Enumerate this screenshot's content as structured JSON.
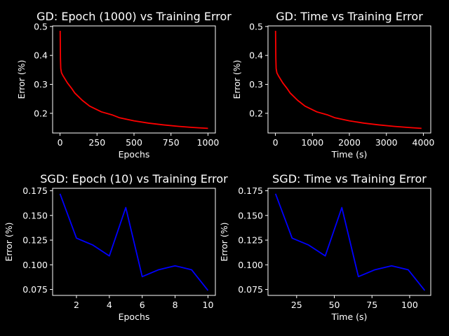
{
  "chart_data": [
    {
      "type": "line",
      "title": "GD: Epoch (1000) vs Training Error",
      "xlabel": "Epochs",
      "ylabel": "Error (%)",
      "xlim": [
        -50,
        1050
      ],
      "ylim": [
        0.132,
        0.502
      ],
      "xticks": [
        0,
        250,
        500,
        750,
        1000
      ],
      "xtick_labels": [
        "0",
        "250",
        "500",
        "750",
        "1000"
      ],
      "yticks": [
        0.2,
        0.3,
        0.4,
        0.5
      ],
      "ytick_labels": [
        "0.2",
        "0.3",
        "0.4",
        "0.5"
      ],
      "series": [
        {
          "color": "#ff0000",
          "x": [
            1,
            2,
            3,
            5,
            10,
            20,
            50,
            80,
            100,
            150,
            200,
            280,
            350,
            400,
            500,
            600,
            700,
            800,
            900,
            1000
          ],
          "y": [
            0.485,
            0.44,
            0.39,
            0.355,
            0.34,
            0.33,
            0.305,
            0.285,
            0.27,
            0.245,
            0.225,
            0.205,
            0.195,
            0.185,
            0.174,
            0.166,
            0.16,
            0.155,
            0.151,
            0.148
          ]
        }
      ]
    },
    {
      "type": "line",
      "title": "GD: Time vs Training Error",
      "xlabel": "Time (s)",
      "ylabel": "Error (%)",
      "xlim": [
        -200,
        4200
      ],
      "ylim": [
        0.132,
        0.502
      ],
      "xticks": [
        0,
        1000,
        2000,
        3000,
        4000
      ],
      "xtick_labels": [
        "0",
        "1000",
        "2000",
        "3000",
        "4000"
      ],
      "yticks": [
        0.2,
        0.3,
        0.4,
        0.5
      ],
      "ytick_labels": [
        "0.2",
        "0.3",
        "0.4",
        "0.5"
      ],
      "series": [
        {
          "color": "#ff0000",
          "x": [
            4,
            8,
            12,
            20,
            40,
            80,
            200,
            320,
            400,
            600,
            800,
            1120,
            1400,
            1600,
            2000,
            2400,
            2800,
            3200,
            3600,
            3950
          ],
          "y": [
            0.485,
            0.44,
            0.39,
            0.355,
            0.34,
            0.33,
            0.305,
            0.285,
            0.27,
            0.245,
            0.225,
            0.205,
            0.195,
            0.185,
            0.174,
            0.166,
            0.16,
            0.155,
            0.151,
            0.148
          ]
        }
      ]
    },
    {
      "type": "line",
      "title": "SGD: Epoch (10) vs Training Error",
      "xlabel": "Epochs",
      "ylabel": "Error (%)",
      "xlim": [
        0.55,
        10.45
      ],
      "ylim": [
        0.069,
        0.1775
      ],
      "xticks": [
        2,
        4,
        6,
        8,
        10
      ],
      "xtick_labels": [
        "2",
        "4",
        "6",
        "8",
        "10"
      ],
      "yticks": [
        0.075,
        0.1,
        0.125,
        0.15,
        0.175
      ],
      "ytick_labels": [
        "0.075",
        "0.100",
        "0.125",
        "0.150",
        "0.175"
      ],
      "series": [
        {
          "color": "#0000ff",
          "x": [
            1,
            2,
            3,
            4,
            5,
            6,
            7,
            8,
            9,
            10
          ],
          "y": [
            0.172,
            0.127,
            0.12,
            0.109,
            0.158,
            0.088,
            0.095,
            0.099,
            0.095,
            0.074
          ]
        }
      ]
    },
    {
      "type": "line",
      "title": "SGD: Time vs Training Error",
      "xlabel": "Time (s)",
      "ylabel": "Error (%)",
      "xlim": [
        6,
        114
      ],
      "ylim": [
        0.069,
        0.1775
      ],
      "xticks": [
        25,
        50,
        75,
        100
      ],
      "xtick_labels": [
        "25",
        "50",
        "75",
        "100"
      ],
      "yticks": [
        0.075,
        0.1,
        0.125,
        0.15,
        0.175
      ],
      "ytick_labels": [
        "0.075",
        "0.100",
        "0.125",
        "0.150",
        "0.175"
      ],
      "series": [
        {
          "color": "#0000ff",
          "x": [
            11,
            22,
            33,
            44,
            55,
            66,
            77,
            88,
            99,
            110
          ],
          "y": [
            0.172,
            0.127,
            0.12,
            0.109,
            0.158,
            0.088,
            0.095,
            0.099,
            0.095,
            0.074
          ]
        }
      ]
    }
  ]
}
